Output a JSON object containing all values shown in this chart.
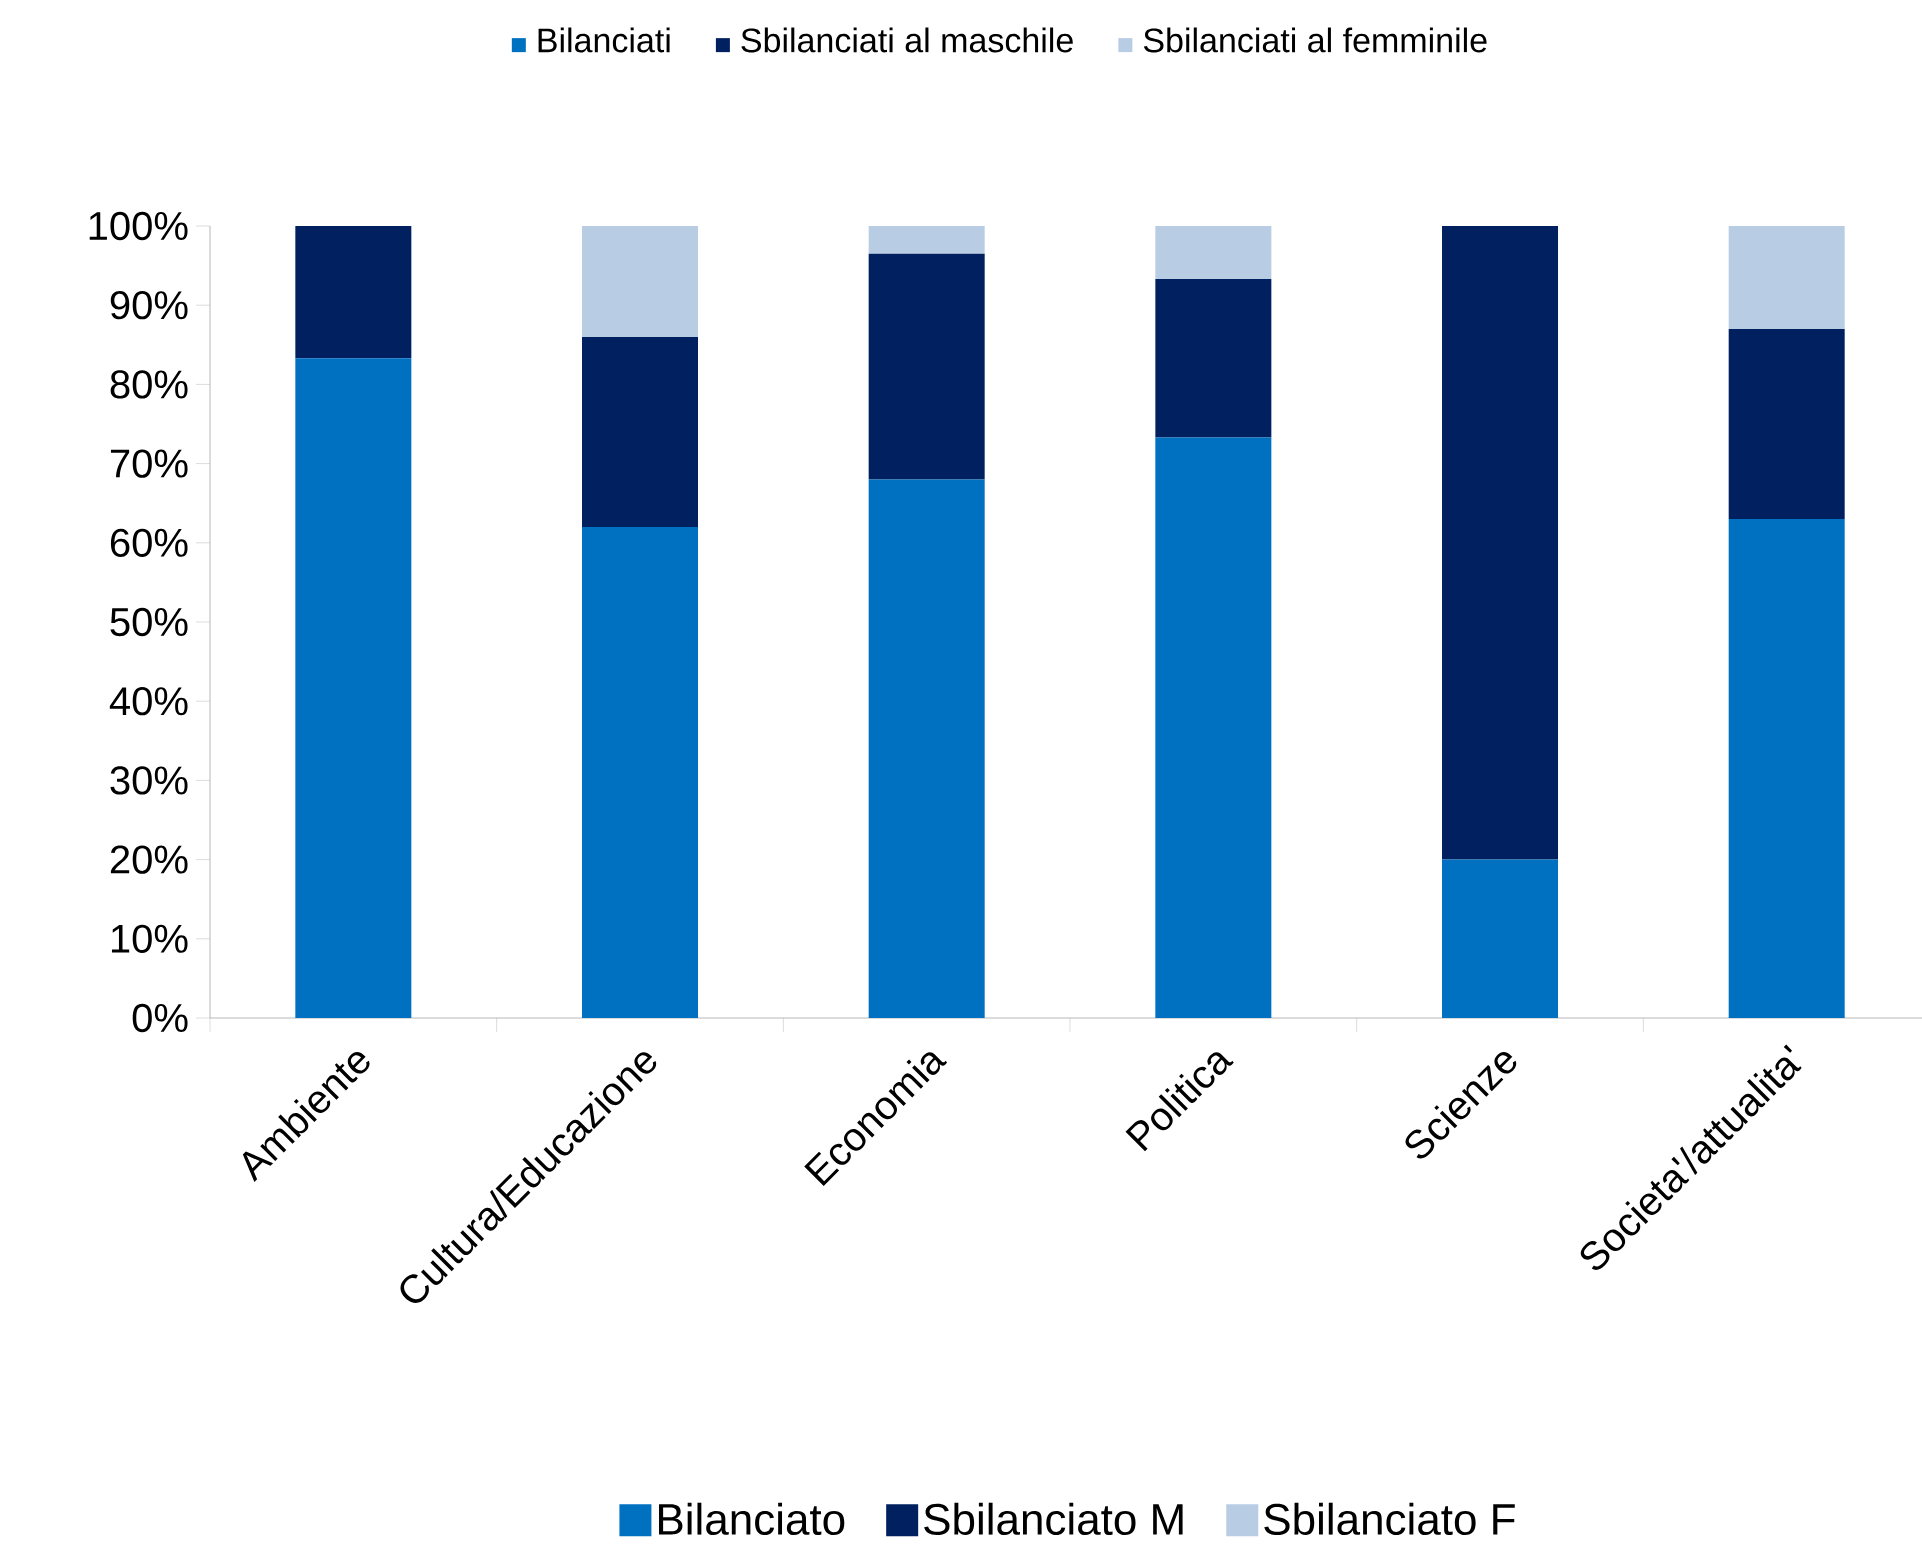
{
  "chart_data": {
    "type": "bar",
    "stacked": true,
    "categories": [
      "Ambiente",
      "Cultura/Educazione",
      "Economia",
      "Politica",
      "Scienze",
      "Societa'/attualita'"
    ],
    "series": [
      {
        "name": "Bilanciato",
        "color": "#0070c0",
        "values": [
          83.3,
          62,
          68,
          73.3,
          20,
          63
        ]
      },
      {
        "name": "Sbilanciato M",
        "color": "#002060",
        "values": [
          16.7,
          24,
          28.5,
          20,
          80,
          24
        ]
      },
      {
        "name": "Sbilanciato F",
        "color": "#b8cce4",
        "values": [
          0,
          14,
          3.5,
          6.7,
          0,
          13
        ]
      }
    ],
    "annotations": [
      "Bilanciati",
      "Sbilanciati al maschile",
      "Sbilanciati al femminile"
    ],
    "ylim": [
      0,
      100
    ],
    "yticks": [
      {
        "value": 0,
        "label": "0%"
      },
      {
        "value": 10,
        "label": "10%"
      },
      {
        "value": 20,
        "label": "20%"
      },
      {
        "value": 30,
        "label": "30%"
      },
      {
        "value": 40,
        "label": "40%"
      },
      {
        "value": 50,
        "label": "50%"
      },
      {
        "value": 60,
        "label": "60%"
      },
      {
        "value": 70,
        "label": "70%"
      },
      {
        "value": 80,
        "label": "80%"
      },
      {
        "value": 90,
        "label": "90%"
      },
      {
        "value": 100,
        "label": "100%"
      }
    ],
    "grid": false,
    "legend": "bottom"
  }
}
